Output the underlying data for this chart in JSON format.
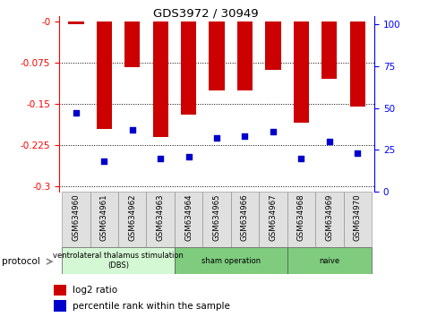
{
  "title": "GDS3972 / 30949",
  "categories": [
    "GSM634960",
    "GSM634961",
    "GSM634962",
    "GSM634963",
    "GSM634964",
    "GSM634965",
    "GSM634966",
    "GSM634967",
    "GSM634968",
    "GSM634969",
    "GSM634970"
  ],
  "log2_values": [
    -0.005,
    -0.195,
    -0.083,
    -0.21,
    -0.17,
    -0.125,
    -0.125,
    -0.088,
    -0.185,
    -0.105,
    -0.155
  ],
  "percentile_values": [
    47,
    18,
    37,
    20,
    21,
    32,
    33,
    36,
    20,
    30,
    23
  ],
  "ylim_left": [
    -0.31,
    0.01
  ],
  "ylim_right": [
    0,
    105
  ],
  "yticks_left": [
    0,
    -0.075,
    -0.15,
    -0.225,
    -0.3
  ],
  "yticks_right": [
    0,
    25,
    50,
    75,
    100
  ],
  "bar_color": "#cc0000",
  "dot_color": "#0000cc",
  "bar_width": 0.55,
  "groups": [
    {
      "label": "ventrolateral thalamus stimulation\n(DBS)",
      "start": 0,
      "end": 4,
      "color": "#d4f7d4"
    },
    {
      "label": "sham operation",
      "start": 4,
      "end": 8,
      "color": "#7fcc7f"
    },
    {
      "label": "naive",
      "start": 8,
      "end": 11,
      "color": "#7fcc7f"
    }
  ],
  "background_color": "#ffffff"
}
